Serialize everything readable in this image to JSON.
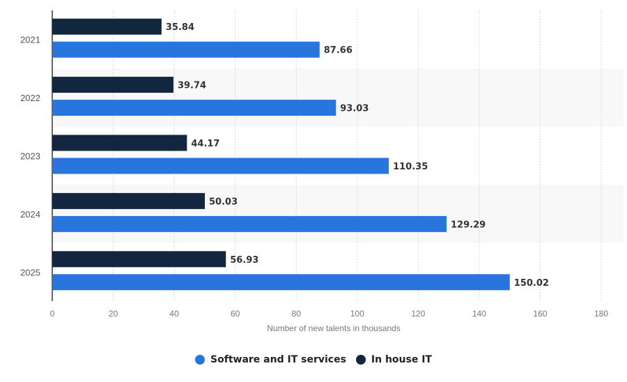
{
  "chart_data": {
    "type": "bar",
    "orientation": "horizontal",
    "title": "",
    "xlabel": "Number of new talents in thousands",
    "ylabel": "",
    "categories": [
      "2021",
      "2022",
      "2023",
      "2024",
      "2025"
    ],
    "series": [
      {
        "name": "In house IT",
        "color": "#12263f",
        "values": [
          35.84,
          39.74,
          44.17,
          50.03,
          56.93
        ]
      },
      {
        "name": "Software and IT services",
        "color": "#2876dd",
        "values": [
          87.66,
          93.03,
          110.35,
          129.29,
          150.02
        ]
      }
    ],
    "xlim": [
      0,
      180
    ],
    "xticks": [
      "0",
      "20",
      "40",
      "60",
      "80",
      "100",
      "120",
      "140",
      "160",
      "180"
    ],
    "grid": "vertical-dotted",
    "legend_position": "bottom-center",
    "legend": [
      "Software and IT services",
      "In house IT"
    ]
  }
}
